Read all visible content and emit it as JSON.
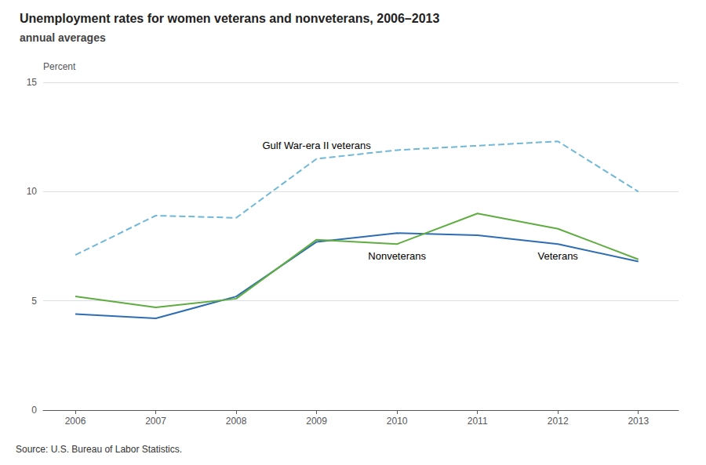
{
  "chart_data": {
    "type": "line",
    "title": "Unemployment rates for women veterans and nonveterans, 2006–2013",
    "subtitle": "annual averages",
    "y_label": "Percent",
    "source": "Source: U.S. Bureau of Labor Statistics.",
    "x": [
      2006,
      2007,
      2008,
      2009,
      2010,
      2011,
      2012,
      2013
    ],
    "series": [
      {
        "name": "Gulf War-era II veterans",
        "color": "#70B8D8",
        "line_style": "dashed",
        "values": [
          7.1,
          8.9,
          8.8,
          11.5,
          11.9,
          12.1,
          12.3,
          10.0
        ]
      },
      {
        "name": "Veterans",
        "color": "#2E6DB4",
        "line_style": "solid",
        "values": [
          4.4,
          4.2,
          5.2,
          7.7,
          8.1,
          8.0,
          7.6,
          6.8
        ]
      },
      {
        "name": "Nonveterans",
        "color": "#5FAD41",
        "line_style": "solid",
        "values": [
          5.2,
          4.7,
          5.1,
          7.8,
          7.6,
          9.0,
          8.3,
          6.9
        ]
      }
    ],
    "xlim": [
      2005.6,
      2013.5
    ],
    "xticks": [
      2006,
      2007,
      2008,
      2009,
      2010,
      2011,
      2012,
      2013
    ],
    "ylim": [
      0,
      15
    ],
    "yticks": [
      0,
      5,
      10,
      15
    ],
    "grid": true
  }
}
